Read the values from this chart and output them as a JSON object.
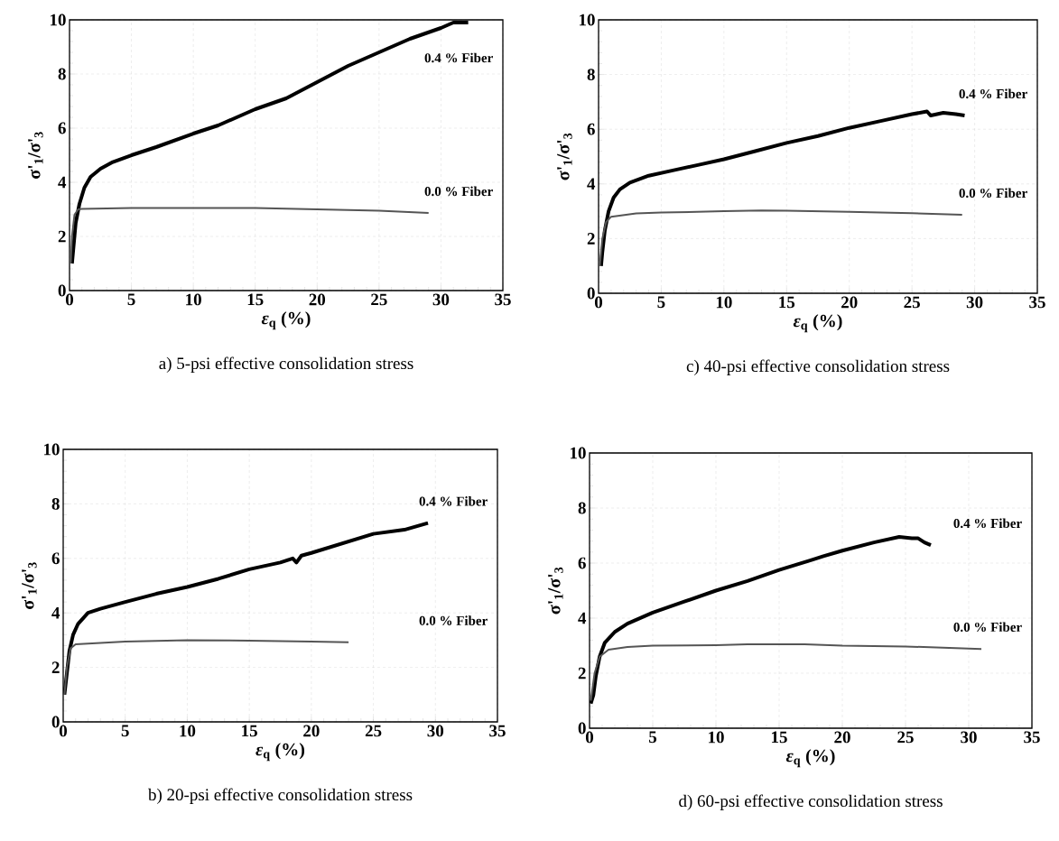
{
  "chart_data": [
    {
      "type": "line",
      "xlabel": "*ε*$_{q}$ (%)",
      "ylabel": "σ'$_{1}$/σ'$_{3}$",
      "xlim": [
        0,
        35
      ],
      "ylim": [
        0,
        10
      ],
      "xticks": [
        0,
        5,
        10,
        15,
        20,
        25,
        30,
        35
      ],
      "yticks": [
        0,
        2,
        4,
        6,
        8,
        10
      ],
      "grid": true,
      "marker": "none",
      "line_style": "solid",
      "annotations": [
        "a) 5-psi effective consolidation stress"
      ],
      "series": [
        {
          "name": "0.4 % Fiber",
          "color": "#000000",
          "x": [
            0.2,
            0.3,
            0.5,
            0.8,
            1.2,
            1.7,
            2.5,
            3.5,
            5,
            7,
            10,
            12,
            15,
            17.5,
            20,
            22.5,
            25,
            27.5,
            30,
            31,
            32.2
          ],
          "values": [
            1.0,
            1.5,
            2.5,
            3.2,
            3.8,
            4.2,
            4.5,
            4.75,
            5.0,
            5.3,
            5.8,
            6.1,
            6.7,
            7.1,
            7.7,
            8.3,
            8.8,
            9.3,
            9.7,
            9.9,
            9.9
          ]
        },
        {
          "name": "0.0 % Fiber",
          "color": "#555555",
          "x": [
            0.1,
            0.2,
            0.4,
            0.7,
            1,
            5,
            10,
            15,
            20,
            25,
            29
          ],
          "values": [
            1.0,
            2.0,
            2.8,
            3.0,
            3.02,
            3.05,
            3.05,
            3.05,
            3.0,
            2.95,
            2.87
          ]
        }
      ]
    },
    {
      "type": "line",
      "xlabel": "*ε*$_{q}$ (%)",
      "ylabel": "σ'$_{1}$/σ'$_{3}$",
      "xlim": [
        0,
        35
      ],
      "ylim": [
        0,
        10
      ],
      "xticks": [
        0,
        5,
        10,
        15,
        20,
        25,
        30,
        35
      ],
      "yticks": [
        0,
        2,
        4,
        6,
        8,
        10
      ],
      "grid": true,
      "marker": "none",
      "line_style": "solid",
      "annotations": [
        "c) 40-psi effective consolidation stress"
      ],
      "series": [
        {
          "name": "0.4 % Fiber",
          "color": "#000000",
          "x": [
            0.2,
            0.3,
            0.5,
            0.8,
            1.2,
            1.7,
            2.5,
            4,
            6,
            8,
            10,
            12.5,
            15,
            17.5,
            20,
            22.5,
            25,
            26.2,
            26.5,
            27.5,
            28.5,
            29.2
          ],
          "values": [
            1.0,
            1.5,
            2.3,
            3.0,
            3.5,
            3.8,
            4.05,
            4.3,
            4.5,
            4.7,
            4.9,
            5.2,
            5.5,
            5.75,
            6.05,
            6.3,
            6.55,
            6.65,
            6.5,
            6.6,
            6.55,
            6.5
          ]
        },
        {
          "name": "0.0 % Fiber",
          "color": "#555555",
          "x": [
            0.1,
            0.3,
            0.6,
            1,
            3,
            5,
            10,
            13,
            15,
            20,
            25,
            27,
            29
          ],
          "values": [
            1.0,
            2.0,
            2.6,
            2.8,
            2.92,
            2.95,
            3.0,
            3.03,
            3.02,
            2.98,
            2.93,
            2.9,
            2.87
          ]
        }
      ]
    },
    {
      "type": "line",
      "xlabel": "*ε*$_{q}$ (%)",
      "ylabel": "σ'$_{1}$/σ'$_{3}$",
      "xlim": [
        0,
        35
      ],
      "ylim": [
        0,
        10
      ],
      "xticks": [
        0,
        5,
        10,
        15,
        20,
        25,
        30,
        35
      ],
      "yticks": [
        0,
        2,
        4,
        6,
        8,
        10
      ],
      "grid": true,
      "marker": "none",
      "line_style": "solid",
      "annotations": [
        "b) 20-psi effective consolidation stress"
      ],
      "series": [
        {
          "name": "0.4 % Fiber",
          "color": "#000000",
          "x": [
            0.1,
            0.3,
            0.5,
            0.8,
            1.2,
            2,
            3,
            5,
            7.5,
            10,
            12.5,
            15,
            17.5,
            18.5,
            18.8,
            19.2,
            20,
            22.5,
            25,
            27.5,
            29.4
          ],
          "values": [
            1.0,
            1.8,
            2.6,
            3.2,
            3.6,
            4.0,
            4.15,
            4.4,
            4.7,
            4.95,
            5.25,
            5.6,
            5.85,
            6.0,
            5.85,
            6.1,
            6.2,
            6.55,
            6.9,
            7.05,
            7.3
          ]
        },
        {
          "name": "0.0 % Fiber",
          "color": "#555555",
          "x": [
            0.1,
            0.3,
            0.6,
            1,
            3,
            5,
            10,
            15,
            20,
            23
          ],
          "values": [
            1.0,
            2.0,
            2.7,
            2.85,
            2.9,
            2.95,
            3.0,
            2.98,
            2.95,
            2.92
          ]
        }
      ]
    },
    {
      "type": "line",
      "xlabel": "*ε*$_{q}$ (%)",
      "ylabel": "σ'$_{1}$/σ'$_{3}$",
      "xlim": [
        0,
        35
      ],
      "ylim": [
        0,
        10
      ],
      "xticks": [
        0,
        5,
        10,
        15,
        20,
        25,
        30,
        35
      ],
      "yticks": [
        0,
        2,
        4,
        6,
        8,
        10
      ],
      "grid": true,
      "marker": "none",
      "line_style": "solid",
      "annotations": [
        "d) 60-psi effective consolidation stress"
      ],
      "series": [
        {
          "name": "0.4 % Fiber",
          "color": "#000000",
          "x": [
            0.1,
            0.3,
            0.5,
            0.8,
            1.2,
            2,
            3,
            5,
            7.5,
            10,
            12.5,
            15,
            17.5,
            18.5,
            20,
            22.5,
            24.5,
            25.5,
            26,
            26.5,
            27
          ],
          "values": [
            0.9,
            1.2,
            1.9,
            2.6,
            3.1,
            3.5,
            3.8,
            4.2,
            4.6,
            5.0,
            5.35,
            5.75,
            6.1,
            6.25,
            6.45,
            6.75,
            6.95,
            6.9,
            6.9,
            6.75,
            6.65
          ]
        },
        {
          "name": "0.0 % Fiber",
          "color": "#555555",
          "x": [
            0.1,
            0.4,
            0.8,
            1.5,
            3,
            5,
            10,
            12.5,
            17,
            20,
            25,
            31
          ],
          "values": [
            1.0,
            2.0,
            2.6,
            2.85,
            2.95,
            3.0,
            3.02,
            3.05,
            3.05,
            3.0,
            2.97,
            2.88
          ]
        }
      ]
    }
  ]
}
